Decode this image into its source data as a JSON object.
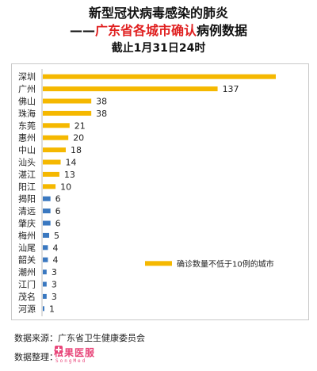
{
  "title": {
    "line1": "新型冠状病毒感染的肺炎",
    "line2_prefix": "——",
    "line2_red": "广东省各城市确认",
    "line2_suffix": "病例数据",
    "line3": "截止1月31日24时"
  },
  "colors": {
    "high": "#f5b800",
    "low": "#3a78c0",
    "red": "#e02020",
    "logo": "#e8467a"
  },
  "chart_data": {
    "type": "bar",
    "orientation": "horizontal",
    "categories": [
      "深圳",
      "广州",
      "佛山",
      "珠海",
      "东莞",
      "惠州",
      "中山",
      "汕头",
      "湛江",
      "阳江",
      "揭阳",
      "清远",
      "肇庆",
      "梅州",
      "汕尾",
      "韶关",
      "潮州",
      "江门",
      "茂名",
      "河源"
    ],
    "values": [
      null,
      137,
      38,
      38,
      21,
      20,
      18,
      14,
      13,
      10,
      6,
      6,
      6,
      5,
      4,
      4,
      3,
      3,
      3,
      1
    ],
    "data_labels": [
      "",
      "137",
      "38",
      "38",
      "21",
      "20",
      "18",
      "14",
      "13",
      "10",
      "6",
      "6",
      "6",
      "5",
      "4",
      "4",
      "3",
      "3",
      "3",
      "1"
    ],
    "highlight_threshold": 10,
    "legend": {
      "label": "确诊数量不低于10例的城市",
      "position": "right"
    },
    "xlim": [
      0,
      200
    ],
    "grid": false
  },
  "footer": {
    "source": "数据来源：广东省卫生健康委员会",
    "compiled_label": "数据整理：",
    "logo_text_left": "松果",
    "logo_text_right": "医服",
    "logo_text_en": "SongMed"
  }
}
